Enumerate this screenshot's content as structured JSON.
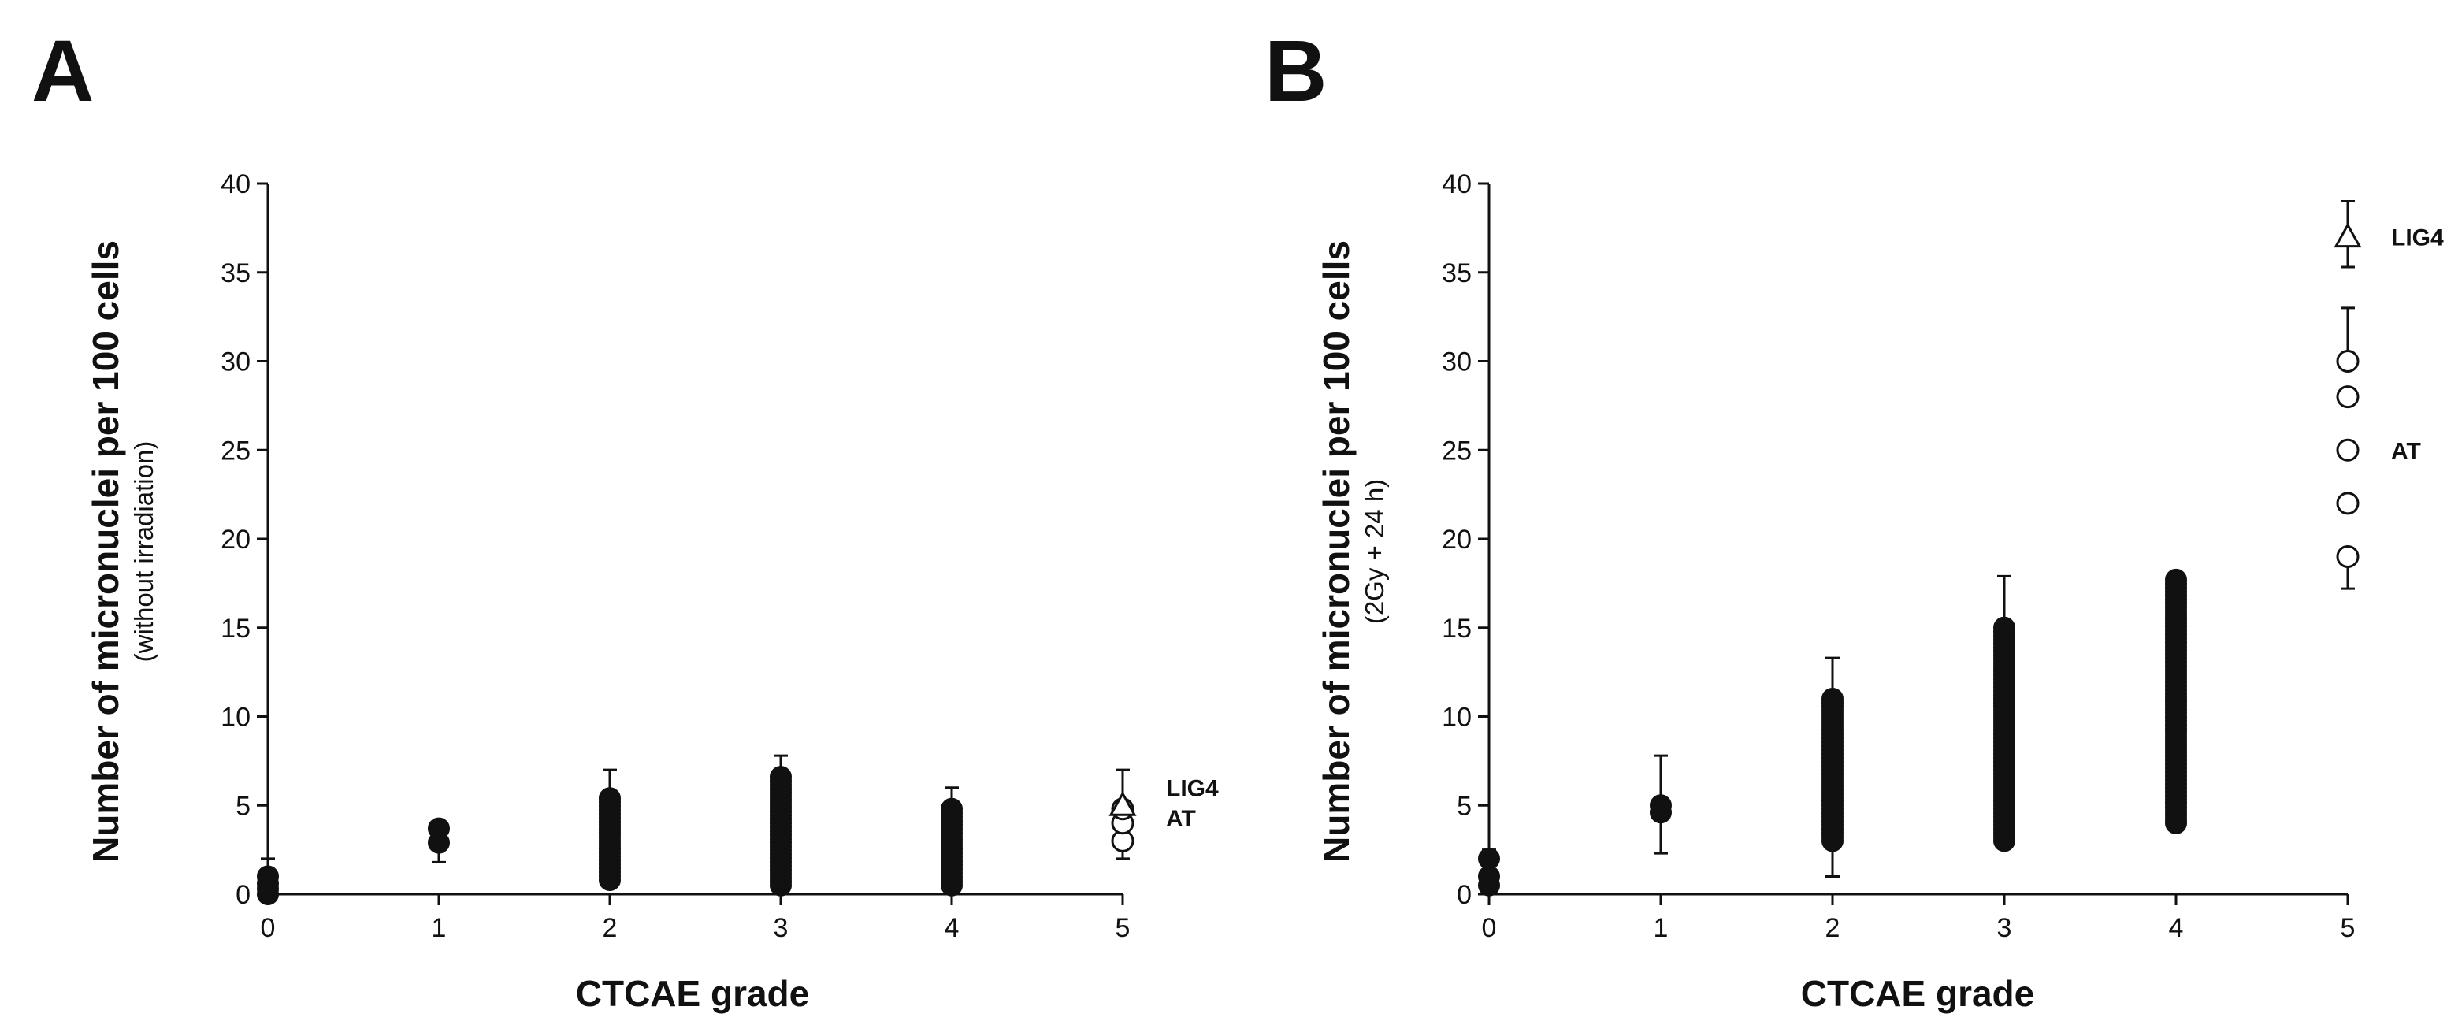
{
  "figure": {
    "background": "#ffffff",
    "ink": "#111111"
  },
  "chart_data": [
    {
      "type": "scatter",
      "panel_label": "A",
      "xlabel": "CTCAE grade",
      "ylabel": "Number of micronuclei per 100 cells",
      "ylabel_sub": "(without irradiation)",
      "xlim": [
        0,
        5
      ],
      "ylim": [
        0,
        40
      ],
      "xticks": [
        "0",
        "1",
        "2",
        "3",
        "4",
        "5"
      ],
      "yticks": [
        "0",
        "5",
        "10",
        "15",
        "20",
        "25",
        "30",
        "35",
        "40"
      ],
      "grid": false,
      "series": [
        {
          "marker": "filled-circle",
          "x": 0,
          "values": [
            0,
            0.3,
            0.6,
            1.0
          ],
          "error_top": 2.0
        },
        {
          "marker": "filled-circle",
          "x": 1,
          "values": [
            2.9,
            3.7
          ],
          "error_top": 4.0,
          "error_bottom": 1.8
        },
        {
          "marker": "filled-circle",
          "x": 2,
          "range": [
            0.8,
            5.4
          ],
          "error_top": 7.0
        },
        {
          "marker": "filled-circle",
          "x": 3,
          "range": [
            0.5,
            6.6
          ],
          "error_top": 7.8
        },
        {
          "marker": "filled-circle",
          "x": 4,
          "range": [
            0.5,
            4.8
          ],
          "error_top": 6.0
        },
        {
          "name": "AT",
          "marker": "open-circle",
          "x": 5,
          "values": [
            3.0,
            4.0,
            4.8
          ],
          "error_top": 7.0,
          "error_bottom": 2.0
        },
        {
          "name": "LIG4",
          "marker": "open-triangle",
          "x": 5,
          "values": [
            5.0
          ]
        }
      ],
      "annotations": [
        {
          "text": "LIG4",
          "x": 5,
          "y": 6.0
        },
        {
          "text": "AT",
          "x": 5,
          "y": 4.3
        }
      ]
    },
    {
      "type": "scatter",
      "panel_label": "B",
      "xlabel": "CTCAE grade",
      "ylabel": "Number of micronuclei per 100 cells",
      "ylabel_sub": "(2Gy + 24 h)",
      "xlim": [
        0,
        5
      ],
      "ylim": [
        0,
        40
      ],
      "xticks": [
        "0",
        "1",
        "2",
        "3",
        "4",
        "5"
      ],
      "yticks": [
        "0",
        "5",
        "10",
        "15",
        "20",
        "25",
        "30",
        "35",
        "40"
      ],
      "grid": false,
      "series": [
        {
          "marker": "filled-circle",
          "x": 0,
          "values": [
            0.5,
            1.0,
            2.0
          ],
          "error_top": 2.5
        },
        {
          "marker": "filled-circle",
          "x": 1,
          "values": [
            4.6,
            5.0
          ],
          "error_top": 7.8,
          "error_bottom": 2.3
        },
        {
          "marker": "filled-circle",
          "x": 2,
          "range": [
            3.0,
            11.0
          ],
          "error_top": 13.3,
          "error_bottom": 1.0
        },
        {
          "marker": "filled-circle",
          "x": 3,
          "range": [
            3.0,
            15.0
          ],
          "error_top": 17.9
        },
        {
          "marker": "filled-circle",
          "x": 4,
          "range": [
            4.0,
            17.7
          ]
        },
        {
          "name": "AT",
          "marker": "open-circle",
          "x": 5,
          "values": [
            19,
            22,
            25,
            28,
            30
          ],
          "error_top": 33,
          "error_bottom": 17.2
        },
        {
          "name": "LIG4",
          "marker": "open-triangle",
          "x": 5,
          "values": [
            37
          ],
          "error_top": 39,
          "error_bottom": 35.3
        }
      ],
      "annotations": [
        {
          "text": "LIG4",
          "x": 5,
          "y": 37
        },
        {
          "text": "AT",
          "x": 5,
          "y": 25
        }
      ]
    }
  ]
}
